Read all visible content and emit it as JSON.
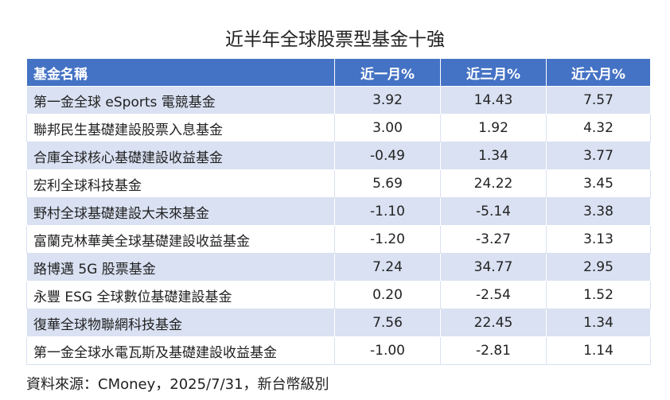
{
  "title": "近半年全球股票型基金十強",
  "table": {
    "header": [
      "基金名稱",
      "近一月%",
      "近三月%",
      "近六月%"
    ],
    "rows": [
      [
        "第一金全球 eSports 電競基金",
        "3.92",
        "14.43",
        "7.57"
      ],
      [
        "聯邦民生基礎建設股票入息基金",
        "3.00",
        "1.92",
        "4.32"
      ],
      [
        "合庫全球核心基礎建設收益基金",
        "-0.49",
        "1.34",
        "3.77"
      ],
      [
        "宏利全球科技基金",
        "5.69",
        "24.22",
        "3.45"
      ],
      [
        "野村全球基礎建設大未來基金",
        "-1.10",
        "-5.14",
        "3.38"
      ],
      [
        "富蘭克林華美全球基礎建設收益基金",
        "-1.20",
        "-3.27",
        "3.13"
      ],
      [
        "路博邁 5G 股票基金",
        "7.24",
        "34.77",
        "2.95"
      ],
      [
        "永豐 ESG 全球數位基礎建設基金",
        "0.20",
        "-2.54",
        "1.52"
      ],
      [
        "復華全球物聯網科技基金",
        "7.56",
        "22.45",
        "1.34"
      ],
      [
        "第一金全球水電瓦斯及基礎建設收益基金",
        "-1.00",
        "-2.81",
        "1.14"
      ]
    ]
  },
  "source": "資料來源：CMoney，2025/7/31，新台幣級別"
}
